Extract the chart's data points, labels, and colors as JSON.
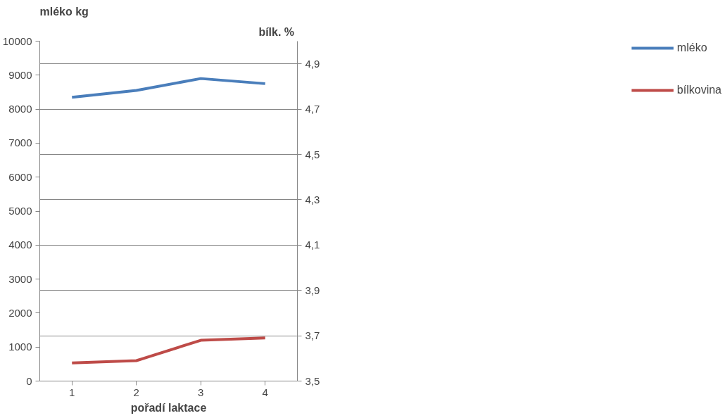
{
  "chart_data": {
    "type": "line",
    "xlabel": "pořadí laktace",
    "ylabel": "mléko kg",
    "y2label": "bílk.  %",
    "categories": [
      "1",
      "2",
      "3",
      "4"
    ],
    "series": [
      {
        "name": "mléko",
        "color": "#4a7ebb",
        "values": [
          8350,
          8550,
          8900,
          8750
        ]
      },
      {
        "name": "bílkovina",
        "color": "#be4b48",
        "values": [
          3.58,
          3.59,
          3.68,
          3.69
        ],
        "axis": "y2"
      }
    ],
    "ylim": [
      0,
      10000
    ],
    "yticks": [
      0,
      1000,
      2000,
      3000,
      4000,
      5000,
      6000,
      7000,
      8000,
      9000,
      10000
    ],
    "y2lim": [
      3.5,
      5.0
    ],
    "y2ticks": [
      {
        "value": 3.5,
        "label": "3,5"
      },
      {
        "value": 3.7,
        "label": "3,7"
      },
      {
        "value": 3.9,
        "label": "3,9"
      },
      {
        "value": 4.1,
        "label": "4,1"
      },
      {
        "value": 4.3,
        "label": "4,3"
      },
      {
        "value": 4.5,
        "label": "4,5"
      },
      {
        "value": 4.7,
        "label": "4,7"
      },
      {
        "value": 4.9,
        "label": "4,9"
      }
    ],
    "grid": "y2",
    "legend": "right",
    "marker": "none",
    "line_style": "solid"
  }
}
